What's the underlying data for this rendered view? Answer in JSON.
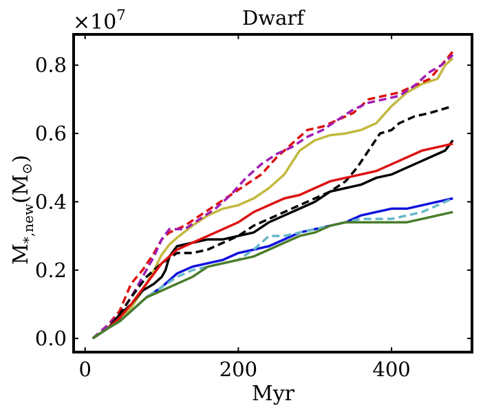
{
  "chart_data": {
    "type": "line",
    "title": "Dwarf",
    "xlabel": "Myr",
    "ylabel_main": "M",
    "ylabel_sub": "*,new",
    "ylabel_paren_open": "(M",
    "ylabel_sun_symbol": "⊙",
    "ylabel_paren_close": ")",
    "y_multiplier": {
      "base": "×10",
      "exponent": "7"
    },
    "xlim": [
      -15,
      505
    ],
    "ylim": [
      -0.04,
      0.89
    ],
    "xticks": [
      0,
      200,
      400
    ],
    "xtick_labels": [
      "0",
      "200",
      "400"
    ],
    "yticks": [
      0.0,
      0.2,
      0.4,
      0.6,
      0.8
    ],
    "ytick_labels": [
      "0.0",
      "0.2",
      "0.4",
      "0.6",
      "0.8"
    ],
    "series": [
      {
        "name": "olive-solid",
        "color": "#c2b83f",
        "dash": "solid",
        "x": [
          10,
          30,
          45,
          60,
          75,
          90,
          100,
          110,
          120,
          140,
          160,
          180,
          200,
          220,
          240,
          260,
          280,
          300,
          320,
          340,
          360,
          380,
          400,
          420,
          440,
          460,
          470,
          480
        ],
        "y": [
          0.0,
          0.03,
          0.06,
          0.09,
          0.14,
          0.2,
          0.245,
          0.275,
          0.295,
          0.33,
          0.36,
          0.38,
          0.39,
          0.41,
          0.44,
          0.48,
          0.55,
          0.58,
          0.595,
          0.6,
          0.61,
          0.63,
          0.68,
          0.72,
          0.745,
          0.76,
          0.8,
          0.82
        ]
      },
      {
        "name": "red-dashed-upper",
        "color": "#dd1111",
        "dash": "dashed",
        "x": [
          10,
          30,
          45,
          60,
          75,
          90,
          100,
          110,
          130,
          150,
          170,
          190,
          210,
          230,
          250,
          270,
          290,
          310,
          330,
          350,
          370,
          390,
          410,
          430,
          450,
          465,
          480
        ],
        "y": [
          0.0,
          0.04,
          0.08,
          0.16,
          0.2,
          0.25,
          0.29,
          0.31,
          0.33,
          0.36,
          0.39,
          0.42,
          0.45,
          0.48,
          0.53,
          0.57,
          0.61,
          0.62,
          0.64,
          0.66,
          0.7,
          0.71,
          0.72,
          0.74,
          0.76,
          0.8,
          0.84
        ]
      },
      {
        "name": "purple-dashed",
        "color": "#a01cb4",
        "dash": "dashed",
        "x": [
          10,
          30,
          45,
          60,
          75,
          90,
          100,
          110,
          130,
          150,
          170,
          190,
          210,
          230,
          250,
          270,
          290,
          310,
          330,
          350,
          370,
          390,
          410,
          430,
          450,
          465,
          480
        ],
        "y": [
          0.0,
          0.04,
          0.07,
          0.12,
          0.18,
          0.24,
          0.29,
          0.32,
          0.32,
          0.35,
          0.38,
          0.42,
          0.47,
          0.51,
          0.54,
          0.56,
          0.59,
          0.61,
          0.64,
          0.67,
          0.69,
          0.7,
          0.71,
          0.74,
          0.78,
          0.8,
          0.83
        ]
      },
      {
        "name": "black-dashed",
        "color": "#000000",
        "dash": "dashed",
        "x": [
          10,
          30,
          45,
          60,
          80,
          100,
          120,
          140,
          160,
          180,
          200,
          220,
          240,
          260,
          280,
          300,
          320,
          340,
          355,
          370,
          385,
          400,
          410,
          430,
          450,
          465,
          480
        ],
        "y": [
          0.0,
          0.03,
          0.07,
          0.12,
          0.18,
          0.22,
          0.25,
          0.25,
          0.26,
          0.28,
          0.3,
          0.33,
          0.35,
          0.37,
          0.39,
          0.41,
          0.43,
          0.46,
          0.5,
          0.55,
          0.6,
          0.61,
          0.63,
          0.65,
          0.66,
          0.67,
          0.68
        ]
      },
      {
        "name": "black-solid",
        "color": "#000000",
        "dash": "solid",
        "x": [
          10,
          30,
          45,
          60,
          75,
          90,
          100,
          105,
          110,
          120,
          140,
          160,
          180,
          200,
          220,
          240,
          260,
          280,
          300,
          320,
          340,
          360,
          380,
          400,
          420,
          440,
          460,
          470,
          480
        ],
        "y": [
          0.0,
          0.03,
          0.07,
          0.1,
          0.14,
          0.16,
          0.18,
          0.2,
          0.24,
          0.27,
          0.28,
          0.29,
          0.29,
          0.3,
          0.31,
          0.34,
          0.36,
          0.38,
          0.4,
          0.43,
          0.44,
          0.45,
          0.47,
          0.48,
          0.5,
          0.52,
          0.54,
          0.55,
          0.58
        ]
      },
      {
        "name": "red-solid",
        "color": "#dd1111",
        "dash": "solid",
        "x": [
          10,
          30,
          45,
          60,
          80,
          100,
          120,
          140,
          160,
          180,
          200,
          220,
          240,
          260,
          280,
          300,
          320,
          340,
          360,
          380,
          400,
          420,
          440,
          460,
          480
        ],
        "y": [
          0.0,
          0.03,
          0.06,
          0.1,
          0.16,
          0.22,
          0.26,
          0.28,
          0.3,
          0.32,
          0.34,
          0.37,
          0.39,
          0.41,
          0.42,
          0.44,
          0.46,
          0.47,
          0.48,
          0.49,
          0.51,
          0.53,
          0.55,
          0.56,
          0.57
        ]
      },
      {
        "name": "blue-solid",
        "color": "#1111dd",
        "dash": "solid",
        "x": [
          10,
          30,
          45,
          60,
          80,
          100,
          120,
          140,
          160,
          180,
          200,
          220,
          240,
          260,
          280,
          300,
          320,
          340,
          360,
          380,
          400,
          420,
          440,
          460,
          480
        ],
        "y": [
          0.0,
          0.03,
          0.05,
          0.08,
          0.12,
          0.15,
          0.19,
          0.21,
          0.22,
          0.23,
          0.25,
          0.26,
          0.27,
          0.29,
          0.31,
          0.32,
          0.33,
          0.34,
          0.36,
          0.37,
          0.38,
          0.38,
          0.39,
          0.4,
          0.41
        ]
      },
      {
        "name": "cyan-dashed",
        "color": "#66b8c8",
        "dash": "dashed",
        "x": [
          10,
          30,
          45,
          60,
          80,
          100,
          120,
          140,
          160,
          180,
          200,
          220,
          230,
          240,
          260,
          280,
          300,
          320,
          340,
          360,
          380,
          400,
          420,
          440,
          460,
          480
        ],
        "y": [
          0.0,
          0.03,
          0.05,
          0.08,
          0.12,
          0.15,
          0.18,
          0.2,
          0.21,
          0.22,
          0.23,
          0.26,
          0.28,
          0.3,
          0.3,
          0.31,
          0.32,
          0.33,
          0.34,
          0.35,
          0.35,
          0.35,
          0.36,
          0.37,
          0.39,
          0.41
        ]
      },
      {
        "name": "green-solid",
        "color": "#4a7d2a",
        "dash": "solid",
        "x": [
          10,
          30,
          45,
          60,
          80,
          100,
          120,
          140,
          160,
          180,
          200,
          220,
          240,
          260,
          280,
          300,
          320,
          340,
          360,
          380,
          400,
          420,
          440,
          460,
          480
        ],
        "y": [
          0.0,
          0.03,
          0.05,
          0.08,
          0.12,
          0.14,
          0.16,
          0.18,
          0.21,
          0.22,
          0.23,
          0.24,
          0.26,
          0.28,
          0.3,
          0.31,
          0.33,
          0.34,
          0.34,
          0.34,
          0.34,
          0.34,
          0.35,
          0.36,
          0.37
        ]
      }
    ]
  }
}
